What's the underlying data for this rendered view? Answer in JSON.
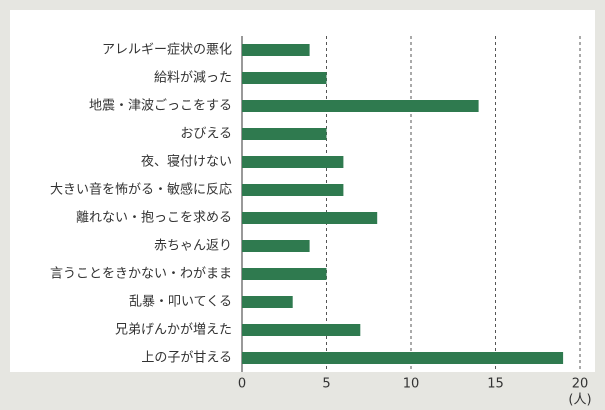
{
  "chart_data": {
    "type": "bar",
    "orientation": "horizontal",
    "categories": [
      "アレルギー症状の悪化",
      "給料が減った",
      "地震・津波ごっこをする",
      "おびえる",
      "夜、寝付けない",
      "大きい音を怖がる・敏感に反応",
      "離れない・抱っこを求める",
      "赤ちゃん返り",
      "言うことをきかない・わがまま",
      "乱暴・叩いてくる",
      "兄弟げんかが増えた",
      "上の子が甘える"
    ],
    "values": [
      4,
      5,
      14,
      5,
      6,
      6,
      8,
      4,
      5,
      3,
      7,
      19
    ],
    "color": "#2f7a4f",
    "xlim": [
      0,
      20
    ],
    "xticks": [
      0,
      5,
      10,
      15,
      20
    ],
    "x_unit": "(人)",
    "grid": true
  }
}
